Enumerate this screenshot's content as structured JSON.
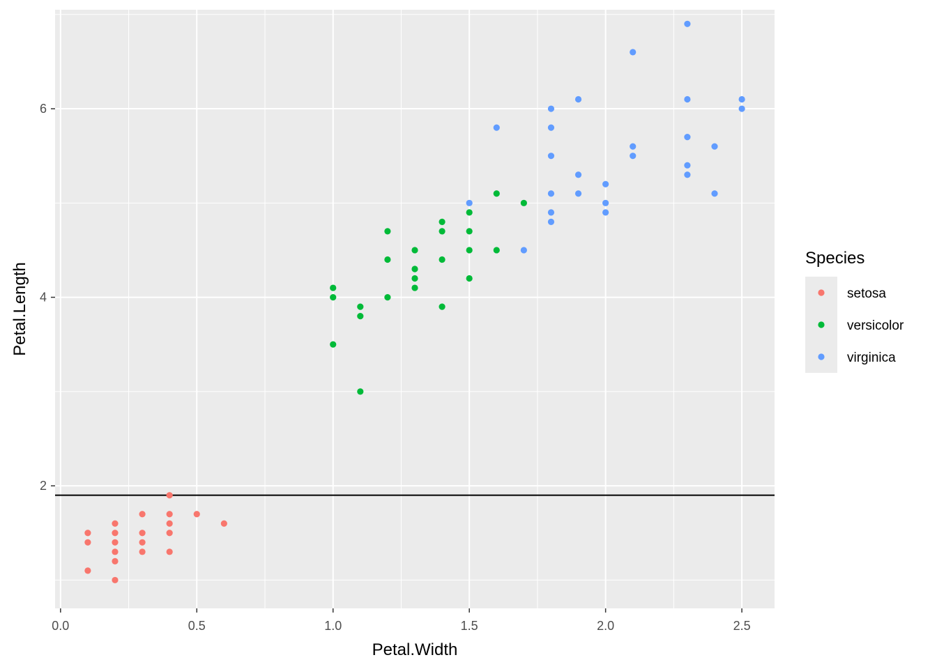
{
  "chart_data": {
    "type": "scatter",
    "title": "",
    "xlabel": "Petal.Width",
    "ylabel": "Petal.Length",
    "xlim": [
      -0.02,
      2.62
    ],
    "ylim": [
      0.7,
      7.05
    ],
    "x_ticks": [
      0.0,
      0.5,
      1.0,
      1.5,
      2.0,
      2.5
    ],
    "x_tick_labels": [
      "0.0",
      "0.5",
      "1.0",
      "1.5",
      "2.0",
      "2.5"
    ],
    "y_ticks": [
      2,
      4,
      6
    ],
    "y_tick_labels": [
      "2",
      "4",
      "6"
    ],
    "grid": true,
    "legend": {
      "title": "Species",
      "position": "right"
    },
    "hline": {
      "y": 1.9,
      "color": "#000000"
    },
    "series": [
      {
        "name": "setosa",
        "color": "#F8766D",
        "points": [
          [
            0.1,
            1.1
          ],
          [
            0.1,
            1.4
          ],
          [
            0.1,
            1.5
          ],
          [
            0.2,
            1.0
          ],
          [
            0.2,
            1.2
          ],
          [
            0.2,
            1.3
          ],
          [
            0.2,
            1.4
          ],
          [
            0.2,
            1.5
          ],
          [
            0.2,
            1.6
          ],
          [
            0.3,
            1.3
          ],
          [
            0.3,
            1.4
          ],
          [
            0.3,
            1.5
          ],
          [
            0.3,
            1.7
          ],
          [
            0.4,
            1.3
          ],
          [
            0.4,
            1.5
          ],
          [
            0.4,
            1.6
          ],
          [
            0.4,
            1.7
          ],
          [
            0.4,
            1.9
          ],
          [
            0.5,
            1.7
          ],
          [
            0.6,
            1.6
          ]
        ]
      },
      {
        "name": "versicolor",
        "color": "#00BA38",
        "points": [
          [
            1.0,
            3.5
          ],
          [
            1.0,
            4.0
          ],
          [
            1.0,
            4.1
          ],
          [
            1.1,
            3.0
          ],
          [
            1.1,
            3.8
          ],
          [
            1.1,
            3.9
          ],
          [
            1.2,
            4.0
          ],
          [
            1.2,
            4.4
          ],
          [
            1.2,
            4.7
          ],
          [
            1.3,
            4.1
          ],
          [
            1.3,
            4.2
          ],
          [
            1.3,
            4.3
          ],
          [
            1.3,
            4.5
          ],
          [
            1.4,
            3.9
          ],
          [
            1.4,
            4.4
          ],
          [
            1.4,
            4.7
          ],
          [
            1.4,
            4.8
          ],
          [
            1.5,
            4.2
          ],
          [
            1.5,
            4.5
          ],
          [
            1.5,
            4.7
          ],
          [
            1.5,
            4.9
          ],
          [
            1.6,
            4.5
          ],
          [
            1.6,
            5.1
          ],
          [
            1.7,
            5.0
          ]
        ]
      },
      {
        "name": "virginica",
        "color": "#619CFF",
        "points": [
          [
            1.5,
            5.0
          ],
          [
            1.6,
            5.8
          ],
          [
            1.7,
            4.5
          ],
          [
            1.8,
            4.8
          ],
          [
            1.8,
            4.9
          ],
          [
            1.8,
            5.1
          ],
          [
            1.8,
            5.5
          ],
          [
            1.8,
            5.8
          ],
          [
            1.8,
            6.0
          ],
          [
            1.9,
            5.1
          ],
          [
            1.9,
            5.3
          ],
          [
            1.9,
            6.1
          ],
          [
            2.0,
            4.9
          ],
          [
            2.0,
            5.0
          ],
          [
            2.0,
            5.2
          ],
          [
            2.1,
            5.5
          ],
          [
            2.1,
            5.6
          ],
          [
            2.1,
            6.6
          ],
          [
            2.3,
            5.3
          ],
          [
            2.3,
            5.4
          ],
          [
            2.3,
            5.7
          ],
          [
            2.3,
            6.1
          ],
          [
            2.3,
            6.9
          ],
          [
            2.4,
            5.1
          ],
          [
            2.4,
            5.6
          ],
          [
            2.5,
            6.0
          ],
          [
            2.5,
            6.1
          ]
        ]
      }
    ]
  }
}
